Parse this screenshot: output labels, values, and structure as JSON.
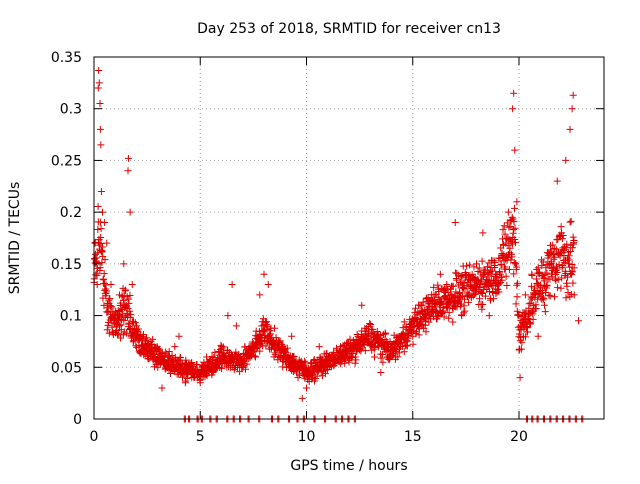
{
  "chart_data": {
    "type": "scatter",
    "title": "Day 253 of 2018, SRMTID for receiver cn13",
    "xlabel": "GPS time / hours",
    "ylabel": "SRMTID / TECUs",
    "xlim": [
      0,
      24
    ],
    "ylim": [
      0,
      0.35
    ],
    "x_ticks": [
      0,
      5,
      10,
      15,
      20
    ],
    "x_tick_labels": [
      "0",
      "5",
      "10",
      "15",
      "20"
    ],
    "y_ticks": [
      0,
      0.05,
      0.1,
      0.15,
      0.2,
      0.25,
      0.3,
      0.35
    ],
    "y_tick_labels": [
      "0",
      "0.05",
      "0.1",
      "0.15",
      "0.2",
      "0.25",
      "0.3",
      "0.35"
    ],
    "grid": true,
    "marker": "plus",
    "color": "#e00000",
    "series": [
      {
        "name": "SRMTID",
        "profile_note": "approximate envelope of the dense point cloud (hour, typical value, spread)",
        "profile": [
          [
            0.0,
            0.14,
            0.03
          ],
          [
            0.3,
            0.17,
            0.06
          ],
          [
            0.6,
            0.11,
            0.03
          ],
          [
            1.0,
            0.09,
            0.025
          ],
          [
            1.5,
            0.11,
            0.04
          ],
          [
            2.0,
            0.08,
            0.02
          ],
          [
            3.0,
            0.06,
            0.015
          ],
          [
            4.0,
            0.05,
            0.015
          ],
          [
            5.0,
            0.045,
            0.012
          ],
          [
            6.0,
            0.06,
            0.015
          ],
          [
            7.0,
            0.055,
            0.015
          ],
          [
            8.0,
            0.085,
            0.02
          ],
          [
            9.0,
            0.06,
            0.015
          ],
          [
            10.0,
            0.045,
            0.015
          ],
          [
            11.0,
            0.055,
            0.012
          ],
          [
            12.0,
            0.065,
            0.015
          ],
          [
            13.0,
            0.08,
            0.02
          ],
          [
            14.0,
            0.065,
            0.015
          ],
          [
            15.0,
            0.09,
            0.02
          ],
          [
            16.0,
            0.11,
            0.025
          ],
          [
            17.0,
            0.12,
            0.03
          ],
          [
            18.0,
            0.13,
            0.03
          ],
          [
            19.0,
            0.14,
            0.035
          ],
          [
            19.8,
            0.18,
            0.06
          ],
          [
            20.0,
            0.08,
            0.03
          ],
          [
            21.0,
            0.13,
            0.04
          ],
          [
            22.0,
            0.16,
            0.05
          ],
          [
            22.6,
            0.15,
            0.06
          ]
        ],
        "points": [
          [
            0.05,
            0.17
          ],
          [
            0.1,
            0.15
          ],
          [
            0.15,
            0.13
          ],
          [
            0.2,
            0.32
          ],
          [
            0.22,
            0.337
          ],
          [
            0.25,
            0.325
          ],
          [
            0.28,
            0.305
          ],
          [
            0.3,
            0.28
          ],
          [
            0.32,
            0.265
          ],
          [
            0.35,
            0.22
          ],
          [
            0.4,
            0.2
          ],
          [
            0.5,
            0.19
          ],
          [
            0.6,
            0.17
          ],
          [
            0.8,
            0.13
          ],
          [
            1.0,
            0.1
          ],
          [
            1.2,
            0.12
          ],
          [
            1.4,
            0.15
          ],
          [
            1.6,
            0.24
          ],
          [
            1.62,
            0.252
          ],
          [
            1.7,
            0.2
          ],
          [
            1.8,
            0.13
          ],
          [
            2.0,
            0.09
          ],
          [
            2.3,
            0.07
          ],
          [
            2.6,
            0.065
          ],
          [
            3.0,
            0.05
          ],
          [
            3.2,
            0.03
          ],
          [
            3.5,
            0.055
          ],
          [
            3.8,
            0.07
          ],
          [
            4.0,
            0.08
          ],
          [
            4.3,
            0.035
          ],
          [
            4.6,
            0.04
          ],
          [
            5.0,
            0.035
          ],
          [
            5.3,
            0.06
          ],
          [
            5.6,
            0.045
          ],
          [
            6.0,
            0.07
          ],
          [
            6.3,
            0.1
          ],
          [
            6.5,
            0.13
          ],
          [
            6.7,
            0.09
          ],
          [
            7.0,
            0.05
          ],
          [
            7.3,
            0.07
          ],
          [
            7.6,
            0.06
          ],
          [
            7.8,
            0.12
          ],
          [
            8.0,
            0.14
          ],
          [
            8.2,
            0.13
          ],
          [
            8.5,
            0.07
          ],
          [
            8.8,
            0.06
          ],
          [
            9.0,
            0.055
          ],
          [
            9.3,
            0.08
          ],
          [
            9.6,
            0.04
          ],
          [
            9.8,
            0.02
          ],
          [
            10.0,
            0.03
          ],
          [
            10.3,
            0.05
          ],
          [
            10.6,
            0.07
          ],
          [
            11.0,
            0.05
          ],
          [
            11.3,
            0.06
          ],
          [
            11.6,
            0.07
          ],
          [
            12.0,
            0.055
          ],
          [
            12.3,
            0.06
          ],
          [
            12.6,
            0.11
          ],
          [
            12.9,
            0.085
          ],
          [
            13.2,
            0.06
          ],
          [
            13.5,
            0.045
          ],
          [
            13.8,
            0.07
          ],
          [
            14.2,
            0.06
          ],
          [
            14.6,
            0.065
          ],
          [
            15.0,
            0.08
          ],
          [
            15.3,
            0.11
          ],
          [
            15.6,
            0.1
          ],
          [
            16.0,
            0.12
          ],
          [
            16.3,
            0.14
          ],
          [
            16.6,
            0.13
          ],
          [
            17.0,
            0.19
          ],
          [
            17.3,
            0.1
          ],
          [
            17.6,
            0.12
          ],
          [
            18.0,
            0.15
          ],
          [
            18.3,
            0.18
          ],
          [
            18.6,
            0.1
          ],
          [
            18.9,
            0.14
          ],
          [
            19.2,
            0.16
          ],
          [
            19.5,
            0.2
          ],
          [
            19.7,
            0.3
          ],
          [
            19.75,
            0.315
          ],
          [
            19.8,
            0.26
          ],
          [
            19.9,
            0.21
          ],
          [
            20.0,
            0.1
          ],
          [
            20.05,
            0.04
          ],
          [
            20.3,
            0.12
          ],
          [
            20.6,
            0.14
          ],
          [
            20.9,
            0.08
          ],
          [
            21.2,
            0.11
          ],
          [
            21.5,
            0.16
          ],
          [
            21.8,
            0.23
          ],
          [
            22.0,
            0.18
          ],
          [
            22.2,
            0.25
          ],
          [
            22.4,
            0.28
          ],
          [
            22.5,
            0.3
          ],
          [
            22.55,
            0.313
          ],
          [
            22.6,
            0.12
          ],
          [
            22.8,
            0.095
          ]
        ]
      }
    ],
    "zero_value_hours": [
      4.25,
      4.45,
      4.85,
      5.05,
      5.45,
      5.75,
      6.25,
      6.55,
      6.85,
      7.25,
      7.75,
      8.35,
      8.65,
      9.15,
      9.55,
      9.85,
      10.35,
      10.85,
      11.35,
      11.65,
      11.95,
      12.25,
      20.35,
      20.6,
      20.85,
      21.15,
      21.45,
      21.75,
      22.05,
      22.35,
      22.65,
      22.95
    ]
  }
}
